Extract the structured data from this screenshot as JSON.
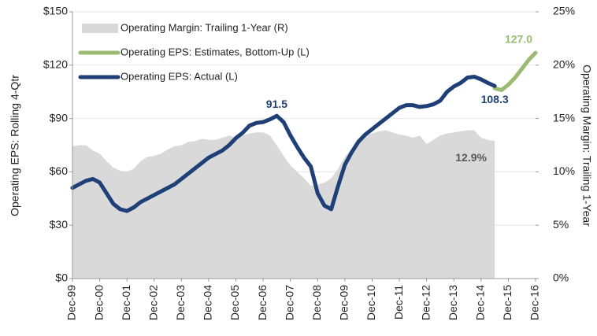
{
  "chart_data": {
    "type": "line",
    "y_label": "Operating EPS: Rolling 4-Qtr",
    "y2_label": "Operating Margin: Trailing 1-Year",
    "categories": [
      "Dec-99",
      null,
      null,
      null,
      "Dec-00",
      null,
      null,
      null,
      "Dec-01",
      null,
      null,
      null,
      "Dec-02",
      null,
      null,
      null,
      "Dec-03",
      null,
      null,
      null,
      "Dec-04",
      null,
      null,
      null,
      "Dec-05",
      null,
      null,
      null,
      "Dec-06",
      null,
      null,
      null,
      "Dec-07",
      null,
      null,
      null,
      "Dec-08",
      null,
      null,
      null,
      "Dec-09",
      null,
      null,
      null,
      "Dec-10",
      null,
      null,
      null,
      "Dec-11",
      null,
      null,
      null,
      "Dec-12",
      null,
      null,
      null,
      "Dec-13",
      null,
      null,
      null,
      "Dec-14",
      null,
      null,
      null,
      "Dec-15",
      null,
      null,
      null,
      "Dec-16"
    ],
    "ylim": [
      0,
      150
    ],
    "yticks": [
      {
        "value": 0,
        "label": "$0"
      },
      {
        "value": 30,
        "label": "$30"
      },
      {
        "value": 60,
        "label": "$60"
      },
      {
        "value": 90,
        "label": "$90"
      },
      {
        "value": 120,
        "label": "$120"
      },
      {
        "value": 150,
        "label": "$150"
      }
    ],
    "y2lim": [
      0,
      25
    ],
    "y2ticks": [
      {
        "value": 0,
        "label": "0%"
      },
      {
        "value": 5,
        "label": "5%"
      },
      {
        "value": 10,
        "label": "10%"
      },
      {
        "value": 15,
        "label": "15%"
      },
      {
        "value": 20,
        "label": "20%"
      },
      {
        "value": 25,
        "label": "25%"
      }
    ],
    "grid": true,
    "legend": "upper left",
    "series": [
      {
        "name": "Operating Margin: Trailing 1-Year (R)",
        "color": "#d9d9d9",
        "kind": "area",
        "axis": "y2",
        "values": [
          12.4,
          12.5,
          12.5,
          12.0,
          11.7,
          11.0,
          10.4,
          10.1,
          10.0,
          10.3,
          11.0,
          11.4,
          11.5,
          11.7,
          12.1,
          12.4,
          12.5,
          12.8,
          12.9,
          13.1,
          13.0,
          13.0,
          13.2,
          13.4,
          13.2,
          13.4,
          13.6,
          13.7,
          13.7,
          13.4,
          12.5,
          11.5,
          10.6,
          10.0,
          9.4,
          8.7,
          8.8,
          9.0,
          9.4,
          10.3,
          11.4,
          12.2,
          13.0,
          13.4,
          13.6,
          13.8,
          13.9,
          13.7,
          13.5,
          13.4,
          13.2,
          13.4,
          12.6,
          13.0,
          13.4,
          13.6,
          13.7,
          13.8,
          13.9,
          13.9,
          13.2,
          13.0,
          12.9,
          null,
          null,
          null,
          null,
          null,
          null
        ],
        "value_labels": [
          null,
          null,
          null,
          null,
          null,
          null,
          null,
          null,
          null,
          null,
          null,
          null,
          null,
          null,
          null,
          null,
          null,
          null,
          null,
          null,
          null,
          null,
          null,
          null,
          null,
          null,
          null,
          null,
          null,
          null,
          null,
          null,
          null,
          null,
          null,
          null,
          null,
          null,
          null,
          null,
          null,
          null,
          null,
          null,
          null,
          null,
          null,
          null,
          null,
          null,
          null,
          null,
          null,
          null,
          null,
          null,
          null,
          null,
          null,
          null,
          null,
          null,
          "12.9%",
          null,
          null,
          null,
          null,
          null,
          null
        ]
      },
      {
        "name": "Operating EPS: Estimates, Bottom-Up (L)",
        "color": "#9bbb73",
        "kind": "line",
        "values": [
          null,
          null,
          null,
          null,
          null,
          null,
          null,
          null,
          null,
          null,
          null,
          null,
          null,
          null,
          null,
          null,
          null,
          null,
          null,
          null,
          null,
          null,
          null,
          null,
          null,
          null,
          null,
          null,
          null,
          null,
          null,
          null,
          null,
          null,
          null,
          null,
          null,
          null,
          null,
          null,
          null,
          null,
          null,
          null,
          null,
          null,
          null,
          null,
          null,
          null,
          null,
          null,
          null,
          null,
          null,
          null,
          null,
          null,
          null,
          null,
          null,
          null,
          107,
          106,
          109,
          113,
          118,
          123,
          127
        ],
        "value_labels": [
          null,
          null,
          null,
          null,
          null,
          null,
          null,
          null,
          null,
          null,
          null,
          null,
          null,
          null,
          null,
          null,
          null,
          null,
          null,
          null,
          null,
          null,
          null,
          null,
          null,
          null,
          null,
          null,
          null,
          null,
          null,
          null,
          null,
          null,
          null,
          null,
          null,
          null,
          null,
          null,
          null,
          null,
          null,
          null,
          null,
          null,
          null,
          null,
          null,
          null,
          null,
          null,
          null,
          null,
          null,
          null,
          null,
          null,
          null,
          null,
          null,
          null,
          null,
          null,
          null,
          null,
          null,
          null,
          "127.0"
        ]
      },
      {
        "name": "Operating EPS: Actual (L)",
        "color": "#1f3f77",
        "kind": "line",
        "values": [
          51,
          53,
          55,
          56,
          54,
          48,
          42,
          39,
          38,
          40,
          43,
          45,
          47,
          49,
          51,
          53,
          56,
          59,
          62,
          65,
          68,
          70,
          72,
          75,
          79,
          82,
          86,
          87.5,
          88,
          89.5,
          91.5,
          88,
          80.5,
          74,
          68,
          63,
          48,
          41,
          39,
          52,
          64,
          71,
          77,
          81,
          84,
          87,
          90,
          93,
          96,
          97.5,
          97.5,
          96.5,
          97,
          98,
          100,
          105,
          108,
          110,
          113,
          113.5,
          112,
          110,
          108.3,
          null,
          null,
          null,
          null,
          null,
          null
        ],
        "value_labels": [
          null,
          null,
          null,
          null,
          null,
          null,
          null,
          null,
          null,
          null,
          null,
          null,
          null,
          null,
          null,
          null,
          null,
          null,
          null,
          null,
          null,
          null,
          null,
          null,
          null,
          null,
          null,
          null,
          null,
          null,
          "91.5",
          null,
          null,
          null,
          null,
          null,
          null,
          null,
          null,
          null,
          null,
          null,
          null,
          null,
          null,
          null,
          null,
          null,
          null,
          null,
          null,
          null,
          null,
          null,
          null,
          null,
          null,
          null,
          null,
          null,
          null,
          null,
          "108.3",
          null,
          null,
          null,
          null,
          null,
          null
        ]
      }
    ]
  }
}
